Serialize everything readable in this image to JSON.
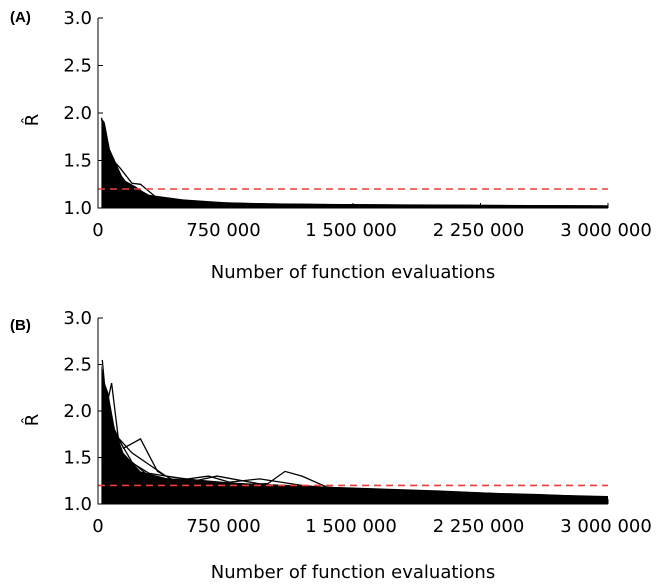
{
  "chart_data": [
    {
      "panel": "(A)",
      "type": "line",
      "xlabel": "Number of function evaluations",
      "ylabel": "R̂",
      "xlim": [
        0,
        3000000
      ],
      "ylim": [
        1.0,
        3.0
      ],
      "xticks": [
        0,
        750000,
        1500000,
        2250000,
        3000000
      ],
      "xtick_labels": [
        "0",
        "750 000",
        "1 500 000",
        "2 250 000",
        "3 000 000"
      ],
      "yticks": [
        1.0,
        1.5,
        2.0,
        2.5,
        3.0
      ],
      "ytick_labels": [
        "1.0",
        "1.5",
        "2.0",
        "2.5",
        "3.0"
      ],
      "grid": false,
      "threshold": {
        "y": 1.2,
        "color": "#e8413a",
        "style": "dashed"
      },
      "series_color": "#000000",
      "envelope": {
        "x": [
          20000,
          40000,
          70000,
          100000,
          150000,
          200000,
          300000,
          500000,
          750000,
          1000000,
          1500000,
          2000000,
          2500000,
          3000000
        ],
        "upper": [
          1.95,
          1.9,
          1.62,
          1.5,
          1.3,
          1.24,
          1.14,
          1.09,
          1.06,
          1.05,
          1.04,
          1.035,
          1.03,
          1.03
        ],
        "lower": [
          1.0,
          1.0,
          1.0,
          1.0,
          1.0,
          1.0,
          1.0,
          1.0,
          1.0,
          1.0,
          1.0,
          1.0,
          1.0,
          1.0
        ]
      },
      "series": [
        {
          "x": [
            20000,
            40000,
            70000,
            110000,
            160000,
            220000,
            300000,
            450000,
            750000,
            1500000,
            3000000
          ],
          "values": [
            1.95,
            1.75,
            1.55,
            1.4,
            1.28,
            1.22,
            1.12,
            1.07,
            1.05,
            1.03,
            1.02
          ]
        },
        {
          "x": [
            25000,
            60000,
            90000,
            130000,
            200000,
            250000,
            350000,
            600000,
            1000000,
            2000000,
            3000000
          ],
          "values": [
            1.8,
            1.62,
            1.5,
            1.42,
            1.26,
            1.25,
            1.1,
            1.06,
            1.04,
            1.03,
            1.02
          ]
        },
        {
          "x": [
            30000,
            80000,
            120000,
            180000,
            240000,
            320000,
            500000,
            900000,
            1800000,
            3000000
          ],
          "values": [
            1.6,
            1.45,
            1.33,
            1.22,
            1.18,
            1.1,
            1.06,
            1.04,
            1.03,
            1.02
          ]
        }
      ]
    },
    {
      "panel": "(B)",
      "type": "line",
      "xlabel": "Number of function evaluations",
      "ylabel": "R̂",
      "xlim": [
        0,
        3000000
      ],
      "ylim": [
        1.0,
        3.0
      ],
      "xticks": [
        0,
        750000,
        1500000,
        2250000,
        3000000
      ],
      "xtick_labels": [
        "0",
        "750 000",
        "1 500 000",
        "2 250 000",
        "3 000 000"
      ],
      "yticks": [
        1.0,
        1.5,
        2.0,
        2.5,
        3.0
      ],
      "ytick_labels": [
        "1.0",
        "1.5",
        "2.0",
        "2.5",
        "3.0"
      ],
      "grid": false,
      "threshold": {
        "y": 1.2,
        "color": "#e8413a",
        "style": "dashed"
      },
      "series_color": "#000000",
      "envelope": {
        "x": [
          20000,
          40000,
          60000,
          100000,
          150000,
          250000,
          400000,
          600000,
          900000,
          1200000,
          1600000,
          2000000,
          2500000,
          3000000
        ],
        "upper": [
          2.5,
          2.3,
          2.2,
          1.8,
          1.55,
          1.35,
          1.28,
          1.25,
          1.22,
          1.2,
          1.16,
          1.13,
          1.1,
          1.08
        ],
        "lower": [
          1.0,
          1.0,
          1.0,
          1.0,
          1.0,
          1.0,
          1.0,
          1.0,
          1.0,
          1.0,
          1.0,
          1.0,
          1.0,
          1.0
        ]
      },
      "series": [
        {
          "x": [
            25000,
            50000,
            80000,
            120000,
            200000,
            300000,
            500000,
            700000,
            1000000,
            1500000,
            2000000,
            2500000,
            3000000
          ],
          "values": [
            2.55,
            2.05,
            2.3,
            1.7,
            1.45,
            1.3,
            1.22,
            1.3,
            1.2,
            1.17,
            1.14,
            1.1,
            1.08
          ]
        },
        {
          "x": [
            30000,
            70000,
            150000,
            250000,
            350000,
            450000,
            650000,
            800000,
            1000000,
            1300000,
            1800000,
            2400000,
            3000000
          ],
          "values": [
            2.2,
            1.9,
            1.6,
            1.7,
            1.35,
            1.25,
            1.3,
            1.22,
            1.2,
            1.15,
            1.12,
            1.1,
            1.07
          ]
        },
        {
          "x": [
            40000,
            100000,
            200000,
            400000,
            600000,
            800000,
            1000000,
            1100000,
            1200000,
            1350000,
            1600000,
            2200000,
            3000000
          ],
          "values": [
            2.0,
            1.75,
            1.55,
            1.3,
            1.25,
            1.2,
            1.22,
            1.35,
            1.3,
            1.18,
            1.15,
            1.12,
            1.06
          ]
        },
        {
          "x": [
            60000,
            150000,
            300000,
            500000,
            750000,
            950000,
            1200000,
            1500000,
            2000000,
            2600000,
            3000000
          ],
          "values": [
            1.8,
            1.5,
            1.33,
            1.27,
            1.23,
            1.27,
            1.2,
            1.15,
            1.13,
            1.1,
            1.07
          ]
        }
      ]
    }
  ]
}
